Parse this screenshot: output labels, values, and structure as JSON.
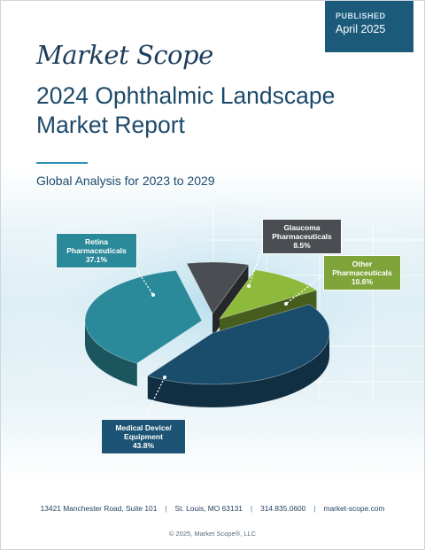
{
  "badge": {
    "label": "PUBLISHED",
    "date": "April 2025"
  },
  "logo": "Market Scope",
  "title_line1": "2024 Ophthalmic Landscape",
  "title_line2": "Market Report",
  "subtitle": "Global Analysis for 2023 to 2029",
  "chart_data": {
    "type": "pie",
    "slices": [
      {
        "name_lines": [
          "Medical Device/",
          "Equipment"
        ],
        "pct_label": "43.8%",
        "value": 43.8,
        "color": "#1a4c6b"
      },
      {
        "name_lines": [
          "Retina",
          "Pharmaceuticals"
        ],
        "pct_label": "37.1%",
        "value": 37.1,
        "color": "#2b8a9a"
      },
      {
        "name_lines": [
          "Glaucoma",
          "Pharmaceuticals"
        ],
        "pct_label": "8.5%",
        "value": 8.5,
        "color": "#4a4e52"
      },
      {
        "name_lines": [
          "Other",
          "Pharmaceuticals"
        ],
        "pct_label": "10.6%",
        "value": 10.6,
        "color": "#8dba3a"
      }
    ]
  },
  "footer": {
    "address": "13421 Manchester Road, Suite 101",
    "city": "St. Louis, MO 63131",
    "phone": "314.835.0600",
    "web": "market-scope.com",
    "copyright": "© 2025, Market Scope®, LLC"
  }
}
